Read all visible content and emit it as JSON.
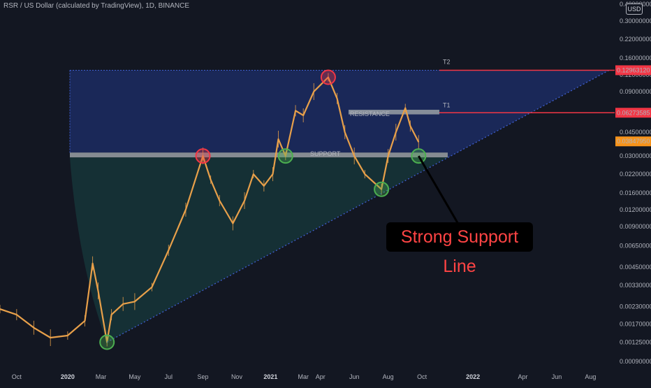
{
  "header": {
    "title": "RSR / US Dollar (calculated by TradingView), 1D, BINANCE",
    "currency_badge": "USD"
  },
  "annotations": {
    "t1_label": "T1",
    "t2_label": "T2",
    "resistance_label": "RESISTANCE",
    "support_label": "SUPPORT",
    "callout_text": "Strong Support Line"
  },
  "colors": {
    "background": "#131722",
    "candle": "#e8a04a",
    "target_line": "#f23645",
    "upper_zone": "#1e2f6b",
    "lower_zone": "#16373b",
    "band": "#9aa0a6",
    "trendline": "#3f5fd0",
    "highlight_red": "#f23645",
    "highlight_green": "#4caf50",
    "current_price_tag": "#f7931a"
  },
  "chart_data": {
    "type": "line",
    "scale": "log",
    "title": "RSR / US Dollar (calculated by TradingView), 1D, BINANCE",
    "x_ticks": [
      "Oct",
      "2020",
      "Mar",
      "May",
      "Jul",
      "Sep",
      "Nov",
      "2021",
      "Mar",
      "Apr",
      "Jun",
      "Aug",
      "Oct",
      "2022",
      "Apr",
      "Jun",
      "Aug"
    ],
    "y_ticks": [
      "0.40000000",
      "0.30000000",
      "0.22000000",
      "0.16000000",
      "0.12000000",
      "0.09000000",
      "0.06500000",
      "0.04500000",
      "0.03000000",
      "0.02200000",
      "0.01600000",
      "0.01200000",
      "0.00900000",
      "0.00650000",
      "0.00450000",
      "0.00330000",
      "0.00230000",
      "0.00170000",
      "0.00125000",
      "0.00090000"
    ],
    "price_tags": [
      {
        "label": "T2",
        "value": "0.12963120"
      },
      {
        "label": "T1",
        "value": "0.06273585"
      },
      {
        "label": "current",
        "value": "0.03847950"
      }
    ],
    "zones": [
      {
        "name": "RESISTANCE",
        "low": 0.061,
        "high": 0.066
      },
      {
        "name": "SUPPORT",
        "low": 0.0293,
        "high": 0.0318
      }
    ],
    "series": [
      {
        "values": [
          {
            "x": "2019-09-01",
            "y": 0.0022
          },
          {
            "x": "2019-10-01",
            "y": 0.002
          },
          {
            "x": "2019-11-01",
            "y": 0.0016
          },
          {
            "x": "2019-12-01",
            "y": 0.00135
          },
          {
            "x": "2020-01-01",
            "y": 0.0014
          },
          {
            "x": "2020-02-01",
            "y": 0.0018
          },
          {
            "x": "2020-02-15",
            "y": 0.0048
          },
          {
            "x": "2020-02-25",
            "y": 0.003
          },
          {
            "x": "2020-03-12",
            "y": 0.00125
          },
          {
            "x": "2020-03-20",
            "y": 0.002
          },
          {
            "x": "2020-04-10",
            "y": 0.0024
          },
          {
            "x": "2020-05-01",
            "y": 0.0025
          },
          {
            "x": "2020-06-01",
            "y": 0.0032
          },
          {
            "x": "2020-07-01",
            "y": 0.006
          },
          {
            "x": "2020-08-01",
            "y": 0.012
          },
          {
            "x": "2020-09-01",
            "y": 0.03
          },
          {
            "x": "2020-09-15",
            "y": 0.02
          },
          {
            "x": "2020-10-01",
            "y": 0.014
          },
          {
            "x": "2020-10-25",
            "y": 0.0095
          },
          {
            "x": "2020-11-15",
            "y": 0.014
          },
          {
            "x": "2020-12-01",
            "y": 0.022
          },
          {
            "x": "2020-12-20",
            "y": 0.018
          },
          {
            "x": "2021-01-05",
            "y": 0.022
          },
          {
            "x": "2021-01-15",
            "y": 0.04
          },
          {
            "x": "2021-01-28",
            "y": 0.03
          },
          {
            "x": "2021-02-15",
            "y": 0.065
          },
          {
            "x": "2021-03-01",
            "y": 0.06
          },
          {
            "x": "2021-03-20",
            "y": 0.09
          },
          {
            "x": "2021-04-15",
            "y": 0.115
          },
          {
            "x": "2021-05-01",
            "y": 0.08
          },
          {
            "x": "2021-05-15",
            "y": 0.045
          },
          {
            "x": "2021-06-01",
            "y": 0.03
          },
          {
            "x": "2021-06-20",
            "y": 0.022
          },
          {
            "x": "2021-07-20",
            "y": 0.017
          },
          {
            "x": "2021-08-01",
            "y": 0.03
          },
          {
            "x": "2021-08-15",
            "y": 0.045
          },
          {
            "x": "2021-09-01",
            "y": 0.068
          },
          {
            "x": "2021-09-10",
            "y": 0.05
          },
          {
            "x": "2021-09-25",
            "y": 0.038
          }
        ]
      }
    ]
  }
}
